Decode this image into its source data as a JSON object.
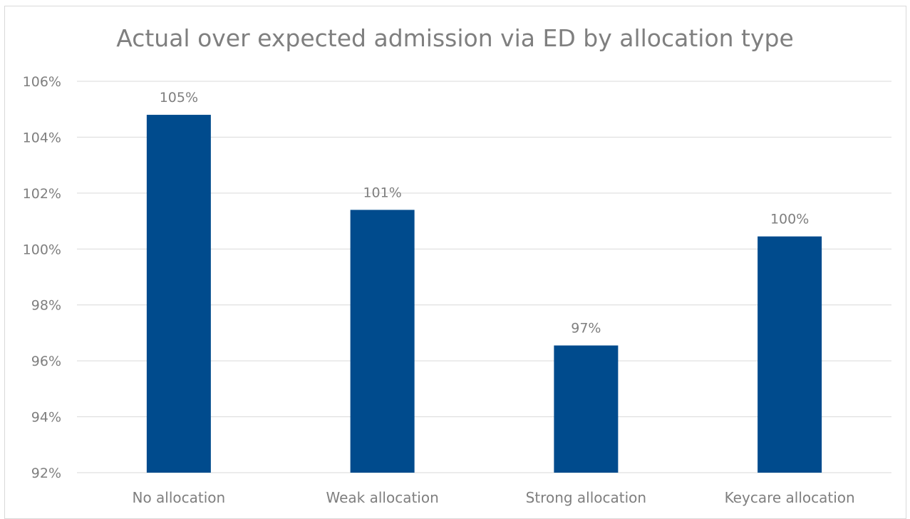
{
  "chart_data": {
    "type": "bar",
    "title": "Actual over expected admission via ED by allocation type",
    "xlabel": "",
    "ylabel": "",
    "categories": [
      "No allocation",
      "Weak allocation",
      "Strong allocation",
      "Keycare allocation"
    ],
    "values": [
      104.8,
      101.4,
      96.55,
      100.45
    ],
    "data_labels": [
      "105%",
      "101%",
      "97%",
      "100%"
    ],
    "ylim": [
      92,
      106
    ],
    "yticks": [
      92,
      94,
      96,
      98,
      100,
      102,
      104,
      106
    ],
    "ytick_labels": [
      "92%",
      "94%",
      "96%",
      "98%",
      "100%",
      "102%",
      "104%",
      "106%"
    ],
    "grid": true,
    "legend": "none",
    "bar_color": "#004B8D",
    "grid_color": "#d9d9d9",
    "text_color": "#7f7f7f"
  }
}
